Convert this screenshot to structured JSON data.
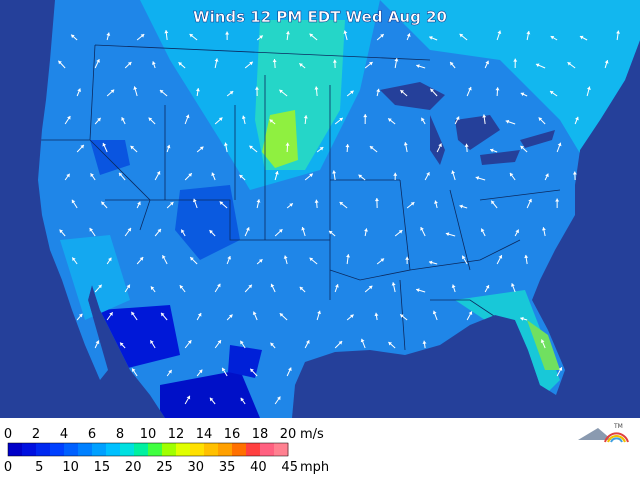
{
  "title": "Winds 12 PM EDT Wed Aug 20",
  "scale": {
    "ms_ticks": [
      0,
      2,
      4,
      6,
      8,
      10,
      12,
      14,
      16,
      18,
      20
    ],
    "ms_unit": "m/s",
    "mph_ticks": [
      0,
      5,
      10,
      15,
      20,
      25,
      30,
      35,
      40,
      45
    ],
    "mph_unit": "mph",
    "colors": [
      "#0000c8",
      "#0010e0",
      "#0028f0",
      "#0040ff",
      "#0060ff",
      "#0080ff",
      "#00a0ff",
      "#00c0ff",
      "#00e0e0",
      "#00f0a0",
      "#40ff40",
      "#a0ff00",
      "#e0ff00",
      "#ffe000",
      "#ffc000",
      "#ffa000",
      "#ff7000",
      "#ff4040",
      "#ff6080",
      "#ff8090"
    ]
  },
  "logo_mark": "TM"
}
